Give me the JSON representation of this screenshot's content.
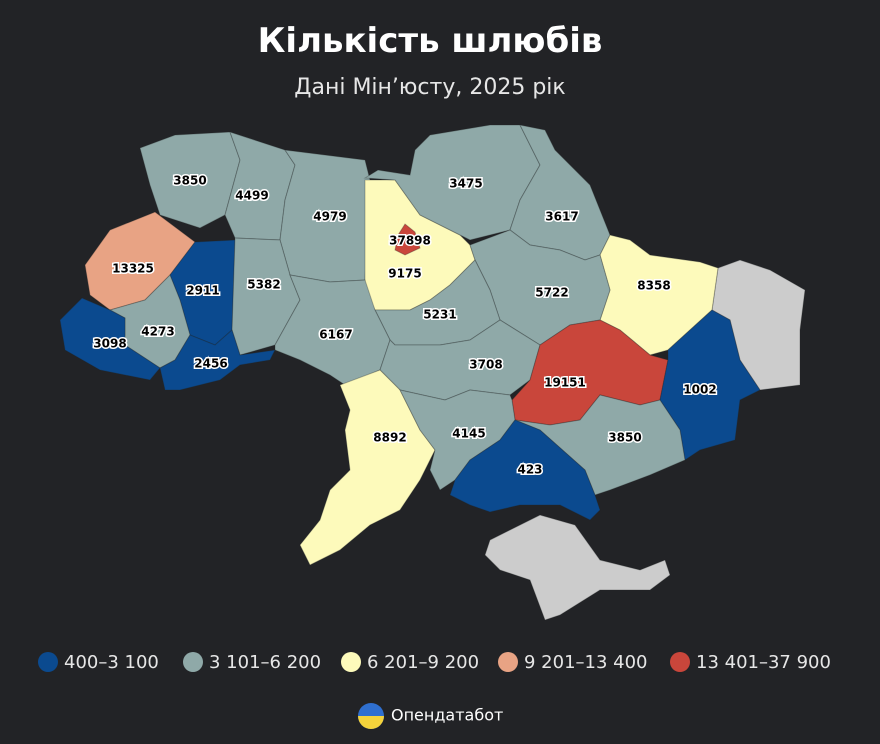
{
  "title": "Кількість шлюбів",
  "subtitle": "Дані Мін’юсту, 2025 рік",
  "legend": [
    {
      "label": "400–3 100",
      "color": "#0b4a8f"
    },
    {
      "label": "3 101–6 200",
      "color": "#8fa9a8"
    },
    {
      "label": "6 201–9 200",
      "color": "#fdfabb"
    },
    {
      "label": "9 201–13 400",
      "color": "#e8a384"
    },
    {
      "label": "13 401–37 900",
      "color": "#c9463b"
    }
  ],
  "regions": [
    {
      "value": 3850,
      "color": "#8fa9a8"
    },
    {
      "value": 4499,
      "color": "#8fa9a8"
    },
    {
      "value": 4979,
      "color": "#8fa9a8"
    },
    {
      "value": 37898,
      "color": "#c9463b"
    },
    {
      "value": 9175,
      "color": "#fdfabb"
    },
    {
      "value": 3475,
      "color": "#8fa9a8"
    },
    {
      "value": 3617,
      "color": "#8fa9a8"
    },
    {
      "value": 13325,
      "color": "#e8a384"
    },
    {
      "value": 2911,
      "color": "#0b4a8f"
    },
    {
      "value": 5382,
      "color": "#8fa9a8"
    },
    {
      "value": 8358,
      "color": "#fdfabb"
    },
    {
      "value": 5722,
      "color": "#8fa9a8"
    },
    {
      "value": 4273,
      "color": "#8fa9a8"
    },
    {
      "value": 3098,
      "color": "#0b4a8f"
    },
    {
      "value": 5231,
      "color": "#8fa9a8"
    },
    {
      "value": 6167,
      "color": "#8fa9a8"
    },
    {
      "value": 2456,
      "color": "#0b4a8f"
    },
    {
      "value": 3708,
      "color": "#8fa9a8"
    },
    {
      "value": 19151,
      "color": "#c9463b"
    },
    {
      "value": 1002,
      "color": "#0b4a8f"
    },
    {
      "value": 8892,
      "color": "#fdfabb"
    },
    {
      "value": 4145,
      "color": "#8fa9a8"
    },
    {
      "value": 3850,
      "color": "#8fa9a8"
    },
    {
      "value": 423,
      "color": "#0b4a8f"
    }
  ],
  "source": "Опендатабот"
}
